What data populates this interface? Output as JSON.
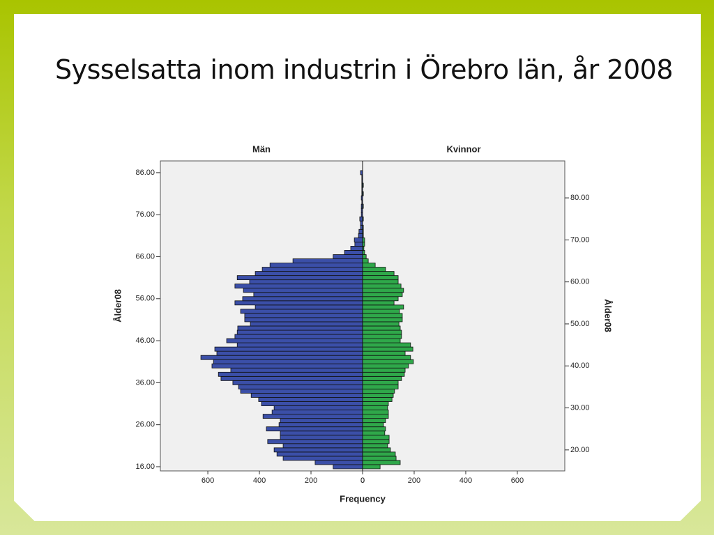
{
  "title": "Sysselsatta inom industrin i Örebro län, år 2008",
  "chart_data": {
    "type": "pyramid",
    "y_label": "Ålder08",
    "y2_label": "Ålder08",
    "x_label": "Frequency",
    "y": [
      16,
      17,
      18,
      19,
      20,
      21,
      22,
      23,
      24,
      25,
      26,
      27,
      28,
      29,
      30,
      31,
      32,
      33,
      34,
      35,
      36,
      37,
      38,
      39,
      40,
      41,
      42,
      43,
      44,
      45,
      46,
      47,
      48,
      49,
      50,
      51,
      52,
      53,
      54,
      55,
      56,
      57,
      58,
      59,
      60,
      61,
      62,
      63,
      64,
      65,
      66,
      67,
      68,
      69,
      70,
      71,
      72,
      73,
      74,
      75,
      76,
      77,
      78,
      79,
      80,
      81,
      82,
      83,
      84,
      85,
      86
    ],
    "series": [
      {
        "name": "Män",
        "color": "#3b4fa8",
        "side": "left",
        "values": [
          114,
          184,
          308,
          332,
          343,
          308,
          368,
          319,
          319,
          373,
          324,
          319,
          386,
          351,
          343,
          392,
          403,
          432,
          473,
          481,
          503,
          549,
          559,
          511,
          584,
          578,
          627,
          565,
          573,
          486,
          527,
          495,
          486,
          484,
          435,
          457,
          457,
          473,
          416,
          495,
          465,
          422,
          462,
          495,
          438,
          486,
          416,
          389,
          359,
          270,
          114,
          70,
          46,
          30,
          32,
          16,
          14,
          8,
          8,
          11,
          5,
          5,
          5,
          3,
          5,
          3,
          3,
          3,
          3,
          3,
          8
        ]
      },
      {
        "name": "Kvinnor",
        "color": "#2fa84a",
        "side": "right",
        "values": [
          68,
          146,
          130,
          127,
          108,
          97,
          103,
          103,
          86,
          89,
          81,
          89,
          100,
          100,
          97,
          100,
          114,
          119,
          124,
          138,
          138,
          151,
          162,
          165,
          178,
          197,
          186,
          165,
          195,
          186,
          146,
          151,
          151,
          146,
          141,
          154,
          154,
          143,
          159,
          122,
          138,
          154,
          159,
          149,
          138,
          138,
          122,
          89,
          49,
          22,
          14,
          8,
          5,
          8,
          8,
          3,
          3,
          3,
          0,
          3,
          0,
          0,
          3,
          0,
          0,
          3,
          0,
          3,
          0,
          0,
          0
        ]
      }
    ],
    "xlim": [
      0,
      784
    ],
    "x_left_ticks": [
      600,
      400,
      200,
      0
    ],
    "x_right_ticks": [
      0,
      200,
      400,
      600
    ],
    "ylim": [
      15,
      88.8
    ],
    "yticks": [
      {
        "value": 16,
        "label": "16.00"
      },
      {
        "value": 26,
        "label": "26.00"
      },
      {
        "value": 36,
        "label": "36.00"
      },
      {
        "value": 46,
        "label": "46.00"
      },
      {
        "value": 56,
        "label": "56.00"
      },
      {
        "value": 66,
        "label": "66.00"
      },
      {
        "value": 76,
        "label": "76.00"
      },
      {
        "value": 86,
        "label": "86.00"
      }
    ],
    "y2ticks": [
      {
        "value": 20,
        "label": "20.00"
      },
      {
        "value": 30,
        "label": "30.00"
      },
      {
        "value": 40,
        "label": "40.00"
      },
      {
        "value": 50,
        "label": "50.00"
      },
      {
        "value": 60,
        "label": "60.00"
      },
      {
        "value": 70,
        "label": "70.00"
      },
      {
        "value": 80,
        "label": "80.00"
      }
    ]
  }
}
